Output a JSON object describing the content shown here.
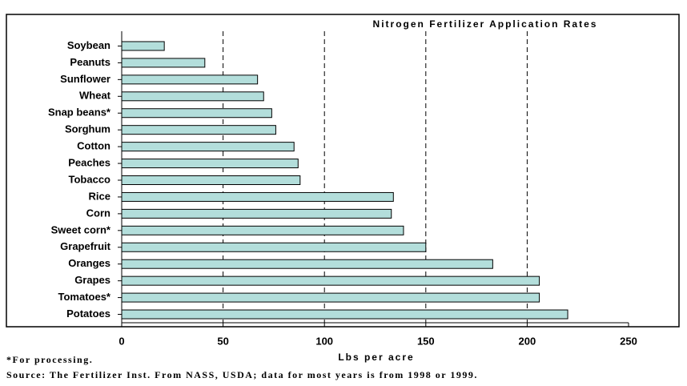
{
  "chart_data": {
    "type": "barh",
    "title": "Nitrogen Fertilizer Application Rates",
    "x_label": "Lbs per acre",
    "footnote": "*For processing.",
    "source": "Source: The Fertilizer Inst. From NASS, USDA; data for most years is from 1998 or 1999.",
    "categories": [
      "Soybean",
      "Peanuts",
      "Sunflower",
      "Wheat",
      "Snap beans*",
      "Sorghum",
      "Cotton",
      "Peaches",
      "Tobacco",
      "Rice",
      "Corn",
      "Sweet corn*",
      "Grapefruit",
      "Oranges",
      "Grapes",
      "Tomatoes*",
      "Potatoes"
    ],
    "values": [
      21,
      41,
      67,
      70,
      74,
      76,
      85,
      87,
      88,
      134,
      133,
      139,
      150,
      183,
      206,
      206,
      220
    ],
    "color": "#b3dedb",
    "xlim": [
      0,
      250
    ],
    "xticks": [
      0,
      50,
      100,
      150,
      200,
      250
    ],
    "grid": true
  }
}
